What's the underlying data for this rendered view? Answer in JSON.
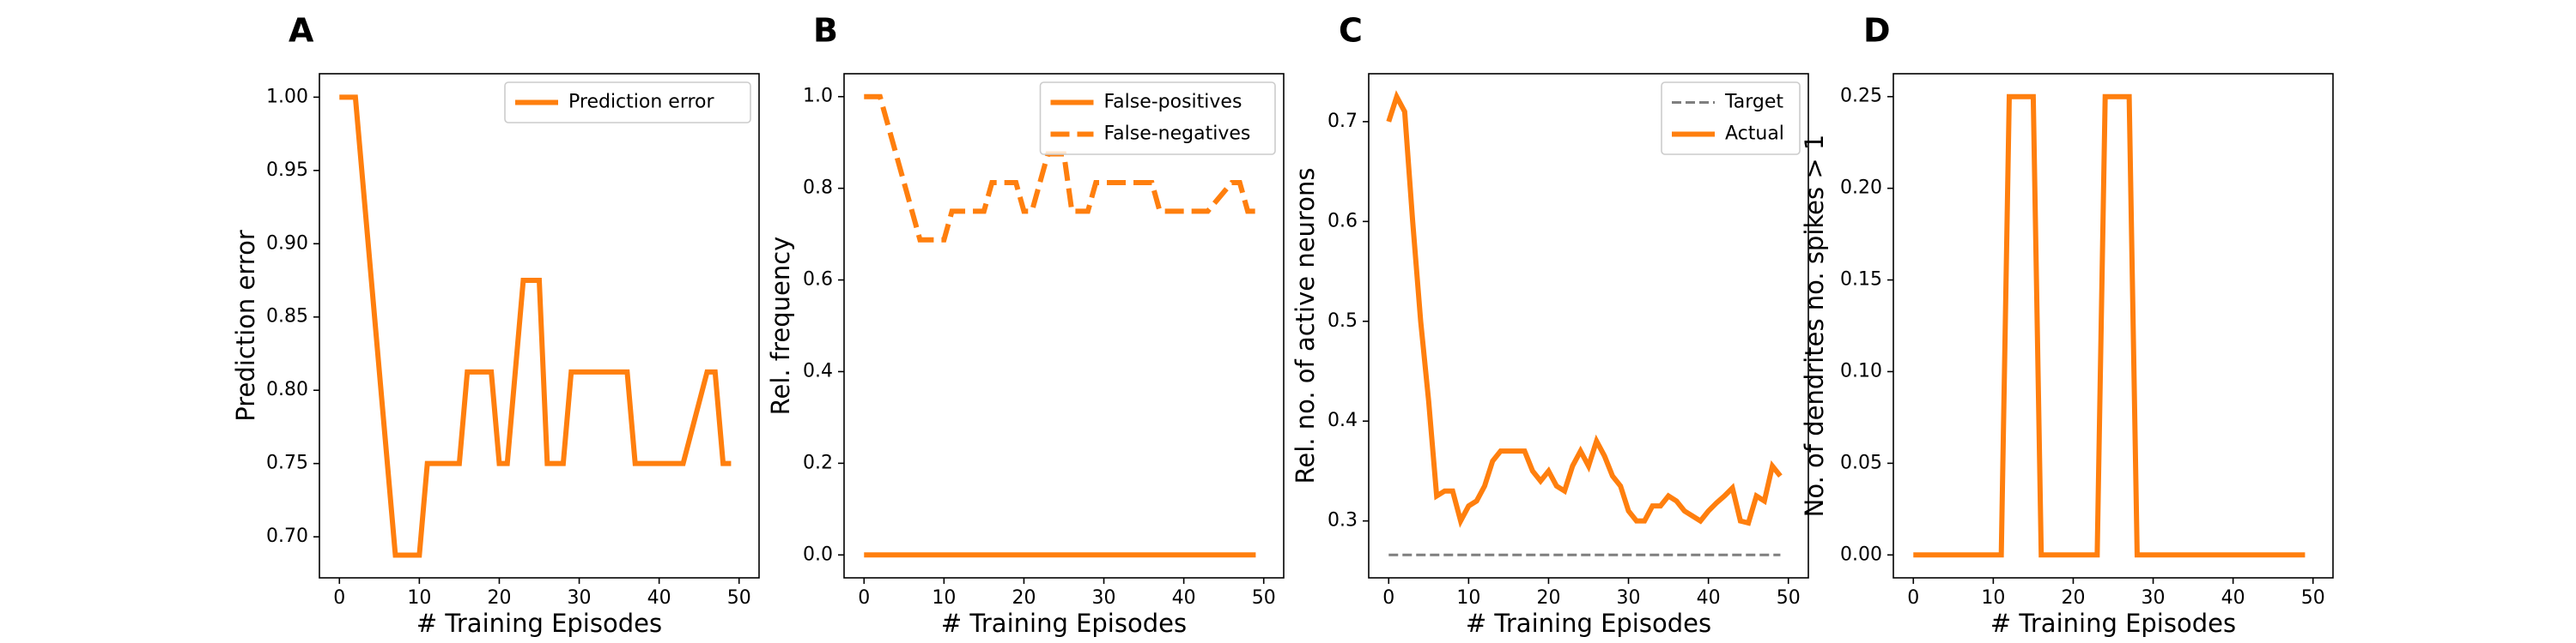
{
  "colors": {
    "orange": "#ff7f0e",
    "target_gray": "#7f7f7f",
    "axes": "#000000",
    "legend_border": "#cccccc"
  },
  "chart_data": [
    {
      "panel": "A",
      "type": "line",
      "xlabel": "# Training Episodes",
      "ylabel": "Prediction error",
      "xlim": [
        -2.5,
        52.5
      ],
      "ylim": [
        0.672,
        1.016
      ],
      "xticks": [
        0,
        10,
        20,
        30,
        40,
        50
      ],
      "yticks": [
        0.7,
        0.75,
        0.8,
        0.85,
        0.9,
        0.95,
        1.0
      ],
      "ytick_labels": [
        "0.70",
        "0.75",
        "0.80",
        "0.85",
        "0.90",
        "0.95",
        "1.00"
      ],
      "legend": {
        "loc": "upper right"
      },
      "series": [
        {
          "name": "Prediction error",
          "style": "solid",
          "x": [
            0,
            2,
            7,
            10,
            11,
            15,
            16,
            19,
            20,
            21,
            23,
            25,
            26,
            28,
            29,
            36,
            37,
            42,
            43,
            46,
            47,
            48,
            49
          ],
          "y": [
            1.0,
            1.0,
            0.6875,
            0.6875,
            0.75,
            0.75,
            0.8125,
            0.8125,
            0.75,
            0.75,
            0.875,
            0.875,
            0.75,
            0.75,
            0.8125,
            0.8125,
            0.75,
            0.75,
            0.75,
            0.8125,
            0.8125,
            0.75,
            0.75
          ]
        }
      ]
    },
    {
      "panel": "B",
      "type": "line",
      "xlabel": "# Training Episodes",
      "ylabel": "Rel. frequency",
      "xlim": [
        -2.5,
        52.5
      ],
      "ylim": [
        -0.05,
        1.05
      ],
      "xticks": [
        0,
        10,
        20,
        30,
        40,
        50
      ],
      "yticks": [
        0.0,
        0.2,
        0.4,
        0.6,
        0.8,
        1.0
      ],
      "ytick_labels": [
        "0.0",
        "0.2",
        "0.4",
        "0.6",
        "0.8",
        "1.0"
      ],
      "legend": {
        "loc": "upper right"
      },
      "series": [
        {
          "name": "False-positives",
          "style": "solid",
          "x": [
            0,
            49
          ],
          "y": [
            0.0,
            0.0
          ]
        },
        {
          "name": "False-negatives",
          "style": "dashed",
          "x": [
            0,
            2,
            7,
            10,
            11,
            15,
            16,
            19,
            20,
            21,
            23,
            25,
            26,
            28,
            29,
            36,
            37,
            42,
            43,
            46,
            47,
            48,
            49
          ],
          "y": [
            1.0,
            1.0,
            0.6875,
            0.6875,
            0.75,
            0.75,
            0.8125,
            0.8125,
            0.75,
            0.75,
            0.875,
            0.875,
            0.75,
            0.75,
            0.8125,
            0.8125,
            0.75,
            0.75,
            0.75,
            0.8125,
            0.8125,
            0.75,
            0.75
          ]
        }
      ]
    },
    {
      "panel": "C",
      "type": "line",
      "xlabel": "# Training Episodes",
      "ylabel": "Rel. no. of active neurons",
      "xlim": [
        -2.5,
        52.5
      ],
      "ylim": [
        0.243,
        0.748
      ],
      "xticks": [
        0,
        10,
        20,
        30,
        40,
        50
      ],
      "yticks": [
        0.3,
        0.4,
        0.5,
        0.6,
        0.7
      ],
      "ytick_labels": [
        "0.3",
        "0.4",
        "0.5",
        "0.6",
        "0.7"
      ],
      "legend": {
        "loc": "upper right"
      },
      "series": [
        {
          "name": "Target",
          "style": "dashed-thin",
          "x": [
            0,
            49
          ],
          "y": [
            0.266,
            0.266
          ]
        },
        {
          "name": "Actual",
          "style": "solid",
          "x": [
            0,
            1,
            2,
            3,
            4,
            5,
            6,
            7,
            8,
            9,
            10,
            11,
            12,
            13,
            14,
            15,
            16,
            17,
            18,
            19,
            20,
            21,
            22,
            23,
            24,
            25,
            26,
            27,
            28,
            29,
            30,
            31,
            32,
            33,
            34,
            35,
            36,
            37,
            38,
            39,
            40,
            41,
            42,
            43,
            44,
            45,
            46,
            47,
            48,
            49
          ],
          "y": [
            0.7,
            0.725,
            0.71,
            0.6,
            0.5,
            0.42,
            0.325,
            0.33,
            0.33,
            0.3,
            0.315,
            0.32,
            0.335,
            0.36,
            0.37,
            0.37,
            0.37,
            0.37,
            0.35,
            0.34,
            0.35,
            0.335,
            0.33,
            0.355,
            0.37,
            0.355,
            0.38,
            0.365,
            0.345,
            0.335,
            0.31,
            0.3,
            0.3,
            0.315,
            0.315,
            0.325,
            0.32,
            0.31,
            0.305,
            0.3,
            0.31,
            0.318,
            0.325,
            0.333,
            0.3,
            0.298,
            0.325,
            0.32,
            0.355,
            0.345
          ]
        }
      ]
    },
    {
      "panel": "D",
      "type": "line",
      "xlabel": "# Training Episodes",
      "ylabel": "No. of dendrites no. spikes > 1",
      "xlim": [
        -2.5,
        52.5
      ],
      "ylim": [
        -0.0125,
        0.2625
      ],
      "xticks": [
        0,
        10,
        20,
        30,
        40,
        50
      ],
      "yticks": [
        0.0,
        0.05,
        0.1,
        0.15,
        0.2,
        0.25
      ],
      "ytick_labels": [
        "0.00",
        "0.05",
        "0.10",
        "0.15",
        "0.20",
        "0.25"
      ],
      "series": [
        {
          "name": "",
          "style": "solid",
          "x": [
            0,
            11,
            12,
            15,
            16,
            23,
            24,
            27,
            28,
            49
          ],
          "y": [
            0.0,
            0.0,
            0.25,
            0.25,
            0.0,
            0.0,
            0.25,
            0.25,
            0.0,
            0.0
          ]
        }
      ]
    }
  ]
}
